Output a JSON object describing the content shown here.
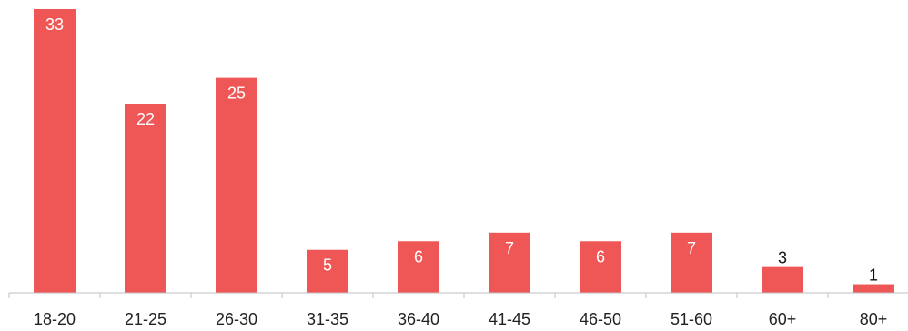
{
  "chart_data": {
    "type": "bar",
    "categories": [
      "18-20",
      "21-25",
      "26-30",
      "31-35",
      "36-40",
      "41-45",
      "46-50",
      "51-60",
      "60+",
      "80+"
    ],
    "values": [
      33,
      22,
      25,
      5,
      6,
      7,
      6,
      7,
      3,
      1
    ],
    "title": "",
    "xlabel": "",
    "ylabel": "",
    "ylim": [
      0,
      33
    ],
    "grid": false,
    "legend": "none",
    "bar_color": "#ef5757",
    "inside_label_color": "#ffffff",
    "outside_label_color": "#111111",
    "axis_color": "#bfbfbf"
  }
}
